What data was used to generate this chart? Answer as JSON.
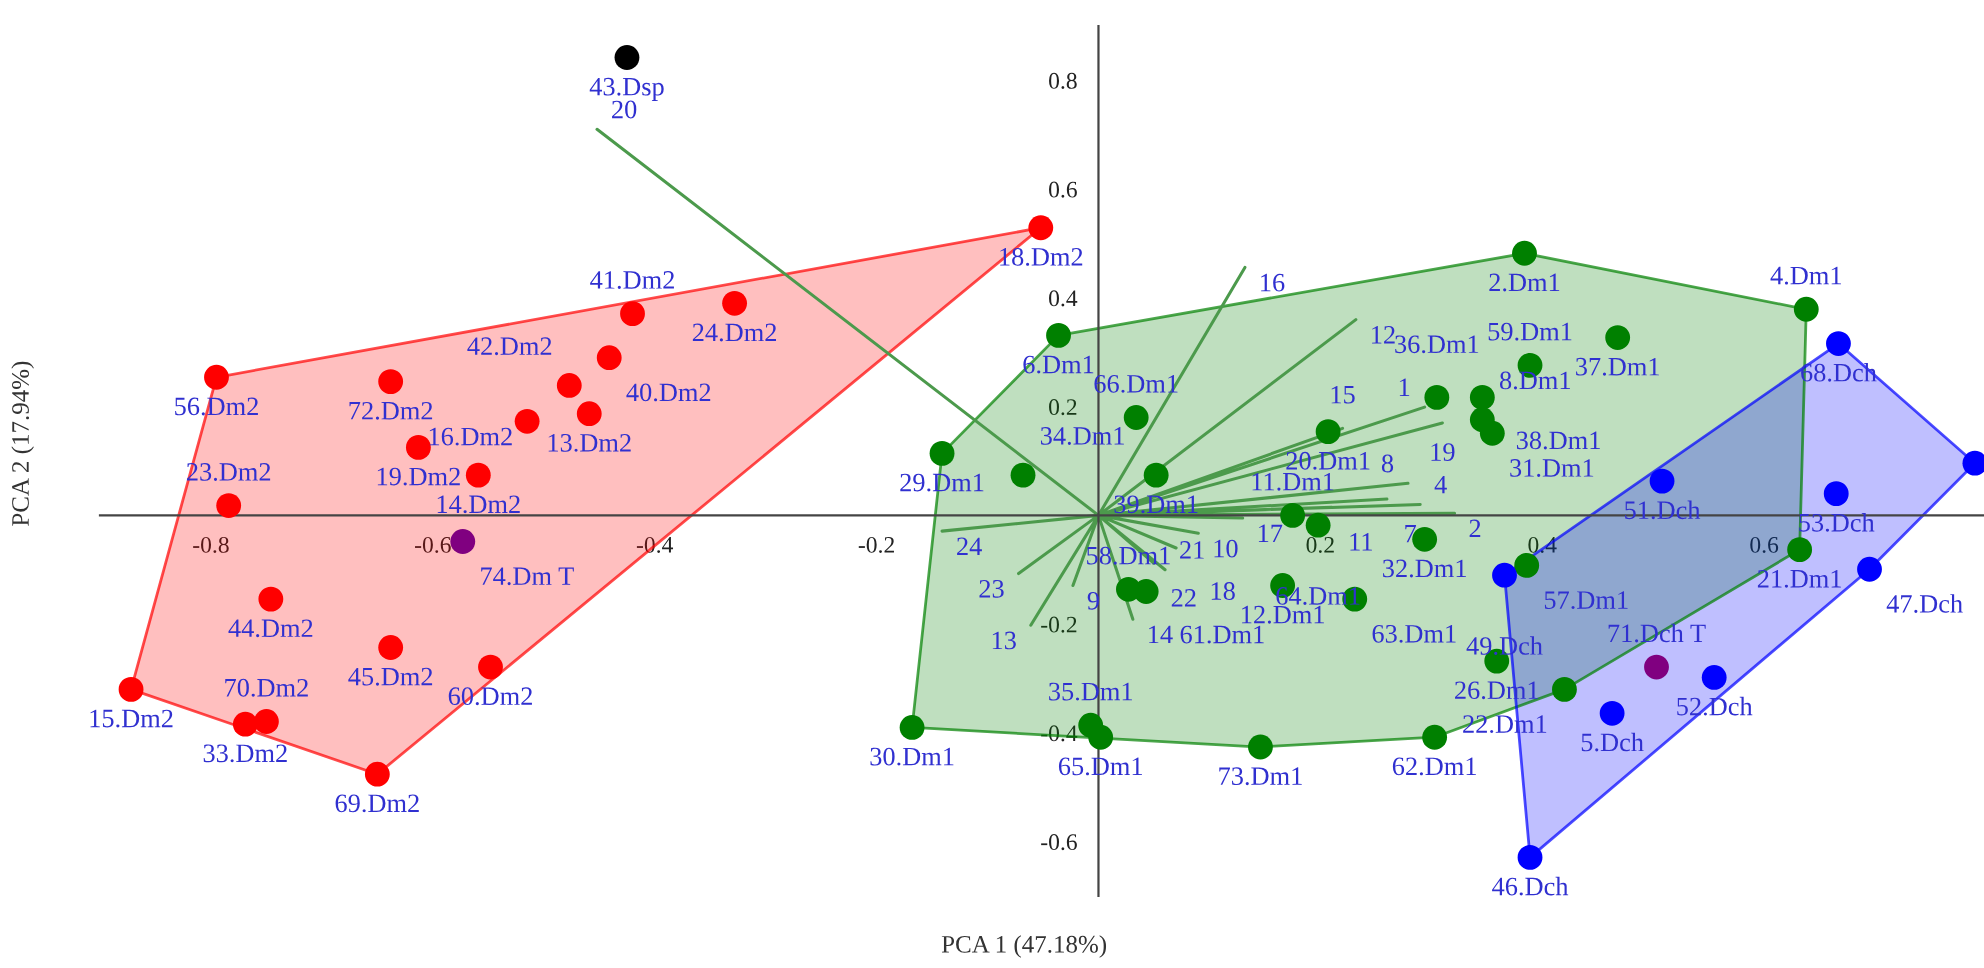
{
  "chart_data": {
    "type": "scatter",
    "xlabel": "PCA 1 (47.18%)",
    "ylabel": "PCA 2 (17.94%)",
    "xlim": [
      -0.9,
      0.8
    ],
    "ylim": [
      -0.7,
      0.9
    ],
    "xticks": [
      -0.8,
      -0.6,
      -0.4,
      -0.2,
      0.2,
      0.4,
      0.6
    ],
    "yticks": [
      -0.6,
      -0.4,
      -0.2,
      0.2,
      0.4,
      0.6,
      0.8
    ],
    "grid": false,
    "legend": false,
    "series": [
      {
        "type": "line",
        "color": "#4c9a4c",
        "x": [
          0,
          -0.452,
          null,
          0,
          0.132,
          null,
          0,
          0.232,
          null,
          0,
          0.294,
          null,
          0,
          0.22,
          null,
          0,
          0.31,
          null,
          0,
          0.279,
          null,
          0,
          0.26,
          null,
          0,
          0.29,
          null,
          0,
          0.321,
          null,
          0,
          0.21,
          null,
          0,
          0.13,
          null,
          0,
          0.09,
          null,
          0,
          0.05,
          null,
          0,
          0.07,
          null,
          0,
          0.06,
          null,
          0,
          0.031,
          null,
          0,
          -0.023,
          null,
          0,
          -0.072,
          null,
          0,
          -0.061,
          null,
          0,
          -0.141
        ],
        "values": [
          0,
          0.71,
          null,
          0,
          0.456,
          null,
          0,
          0.36,
          null,
          0,
          0.199,
          null,
          0,
          0.16,
          null,
          0,
          0.17,
          null,
          0,
          0.059,
          null,
          0,
          0.03,
          null,
          0,
          0.02,
          null,
          0,
          0.004,
          null,
          0,
          0.015,
          null,
          0,
          -0.005,
          null,
          0,
          -0.033,
          null,
          0,
          -0.088,
          null,
          0,
          -0.06,
          null,
          0,
          -0.1,
          null,
          0,
          -0.191,
          null,
          0,
          -0.129,
          null,
          0,
          -0.107,
          null,
          0,
          -0.202,
          null,
          0,
          -0.029
        ]
      },
      {
        "type": "scatter",
        "marker": "circle",
        "color": "#ff0000",
        "x": [
          -0.795,
          -0.638,
          -0.42,
          -0.328,
          -0.441,
          -0.477,
          -0.459,
          -0.515,
          -0.613,
          -0.559,
          -0.052,
          -0.784,
          -0.746,
          -0.638,
          -0.548,
          -0.872,
          -0.769,
          -0.75,
          -0.65
        ],
        "values": [
          0.254,
          0.246,
          0.371,
          0.39,
          0.29,
          0.239,
          0.187,
          0.173,
          0.125,
          0.074,
          0.529,
          0.018,
          -0.154,
          -0.243,
          -0.279,
          -0.32,
          -0.384,
          -0.379,
          -0.476
        ]
      },
      {
        "type": "scatter",
        "marker": "circle",
        "color": "#008000",
        "x": [
          -0.036,
          -0.141,
          -0.068,
          0.034,
          0.052,
          0.207,
          0.305,
          0.175,
          0.198,
          0.294,
          0.166,
          0.231,
          0.027,
          0.043,
          -0.007,
          0.002,
          -0.168,
          0.146,
          0.303,
          0.384,
          0.638,
          0.468,
          0.389,
          0.346,
          0.346,
          0.355,
          0.632,
          0.386,
          0.359,
          0.42
        ],
        "values": [
          0.331,
          0.114,
          0.074,
          0.18,
          0.074,
          0.154,
          0.217,
          0.0,
          -0.018,
          -0.044,
          -0.129,
          -0.154,
          -0.136,
          -0.14,
          -0.386,
          -0.408,
          -0.39,
          -0.426,
          -0.408,
          0.482,
          0.379,
          0.327,
          0.276,
          0.217,
          0.176,
          0.151,
          -0.063,
          -0.092,
          -0.268,
          -0.32
        ]
      },
      {
        "type": "scatter",
        "marker": "circle",
        "color": "#0000ff",
        "x": [
          0.667,
          0.508,
          0.665,
          0.695,
          0.366,
          0.79,
          0.555,
          0.463,
          0.389
        ],
        "values": [
          0.316,
          0.063,
          0.04,
          -0.099,
          -0.11,
          0.096,
          -0.298,
          -0.364,
          -0.629
        ]
      },
      {
        "type": "scatter",
        "marker": "circle",
        "color": "#800080",
        "x": [
          -0.573,
          0.503
        ],
        "values": [
          -0.048,
          -0.279
        ]
      },
      {
        "type": "scatter",
        "marker": "circle",
        "color": "#000000",
        "x": [
          -0.425
        ],
        "values": [
          0.842
        ]
      }
    ],
    "annotations": [
      {
        "text": "20",
        "x": -0.452,
        "y": 0.71
      },
      {
        "text": "16",
        "x": 0.132,
        "y": 0.456
      },
      {
        "text": "12",
        "x": 0.232,
        "y": 0.36
      },
      {
        "text": "1",
        "x": 0.294,
        "y": 0.199
      },
      {
        "text": "15",
        "x": 0.22,
        "y": 0.16
      },
      {
        "text": "19",
        "x": 0.31,
        "y": 0.17
      },
      {
        "text": "8",
        "x": 0.279,
        "y": 0.059
      },
      {
        "text": "7",
        "x": 0.26,
        "y": 0.03
      },
      {
        "text": "4",
        "x": 0.29,
        "y": 0.02
      },
      {
        "text": "2",
        "x": 0.321,
        "y": 0.004
      },
      {
        "text": "11",
        "x": 0.21,
        "y": 0.015
      },
      {
        "text": "17",
        "x": 0.13,
        "y": -0.005
      },
      {
        "text": "10",
        "x": 0.09,
        "y": -0.033
      },
      {
        "text": "22",
        "x": 0.05,
        "y": -0.088
      },
      {
        "text": "18",
        "x": 0.07,
        "y": -0.06
      },
      {
        "text": "21",
        "x": 0.06,
        "y": -0.1
      },
      {
        "text": "14",
        "x": 0.031,
        "y": -0.191
      },
      {
        "text": "9",
        "x": -0.023,
        "y": -0.129
      },
      {
        "text": "23",
        "x": -0.072,
        "y": -0.107
      },
      {
        "text": "13",
        "x": -0.061,
        "y": -0.202
      },
      {
        "text": "24",
        "x": -0.141,
        "y": -0.029
      },
      {
        "text": "56.Dm2",
        "x": -0.795,
        "y": 0.254
      },
      {
        "text": "72.Dm2",
        "x": -0.638,
        "y": 0.246
      },
      {
        "text": "41.Dm2",
        "x": -0.42,
        "y": 0.371
      },
      {
        "text": "24.Dm2",
        "x": -0.328,
        "y": 0.39
      },
      {
        "text": "40.Dm2",
        "x": -0.441,
        "y": 0.29
      },
      {
        "text": "42.Dm2",
        "x": -0.477,
        "y": 0.239
      },
      {
        "text": "13.Dm2",
        "x": -0.459,
        "y": 0.187
      },
      {
        "text": "16.Dm2",
        "x": -0.515,
        "y": 0.173
      },
      {
        "text": "19.Dm2",
        "x": -0.613,
        "y": 0.125
      },
      {
        "text": "14.Dm2",
        "x": -0.559,
        "y": 0.074
      },
      {
        "text": "18.Dm2",
        "x": -0.052,
        "y": 0.529
      },
      {
        "text": "23.Dm2",
        "x": -0.784,
        "y": 0.018
      },
      {
        "text": "44.Dm2",
        "x": -0.746,
        "y": -0.154
      },
      {
        "text": "45.Dm2",
        "x": -0.638,
        "y": -0.243
      },
      {
        "text": "60.Dm2",
        "x": -0.548,
        "y": -0.279
      },
      {
        "text": "15.Dm2",
        "x": -0.872,
        "y": -0.32
      },
      {
        "text": "33.Dm2",
        "x": -0.769,
        "y": -0.384
      },
      {
        "text": "70.Dm2",
        "x": -0.75,
        "y": -0.379
      },
      {
        "text": "69.Dm2",
        "x": -0.65,
        "y": -0.476
      },
      {
        "text": "6.Dm1",
        "x": -0.036,
        "y": 0.331
      },
      {
        "text": "29.Dm1",
        "x": -0.141,
        "y": 0.114
      },
      {
        "text": "34.Dm1",
        "x": -0.068,
        "y": 0.074
      },
      {
        "text": "66.Dm1",
        "x": 0.034,
        "y": 0.18
      },
      {
        "text": "39.Dm1",
        "x": 0.052,
        "y": 0.074
      },
      {
        "text": "20.Dm1",
        "x": 0.207,
        "y": 0.154
      },
      {
        "text": "36.Dm1",
        "x": 0.305,
        "y": 0.217
      },
      {
        "text": "11.Dm1",
        "x": 0.175,
        "y": 0.0
      },
      {
        "text": "64.Dm1",
        "x": 0.198,
        "y": -0.018
      },
      {
        "text": "32.Dm1",
        "x": 0.294,
        "y": -0.044
      },
      {
        "text": "12.Dm1",
        "x": 0.166,
        "y": -0.129
      },
      {
        "text": "63.Dm1",
        "x": 0.231,
        "y": -0.154
      },
      {
        "text": "58.Dm1",
        "x": 0.027,
        "y": -0.136
      },
      {
        "text": "61.Dm1",
        "x": 0.043,
        "y": -0.14
      },
      {
        "text": "35.Dm1",
        "x": -0.007,
        "y": -0.386
      },
      {
        "text": "65.Dm1",
        "x": 0.002,
        "y": -0.408
      },
      {
        "text": "30.Dm1",
        "x": -0.168,
        "y": -0.39
      },
      {
        "text": "73.Dm1",
        "x": 0.146,
        "y": -0.426
      },
      {
        "text": "62.Dm1",
        "x": 0.303,
        "y": -0.408
      },
      {
        "text": "2.Dm1",
        "x": 0.384,
        "y": 0.482
      },
      {
        "text": "4.Dm1",
        "x": 0.638,
        "y": 0.379
      },
      {
        "text": "37.Dm1",
        "x": 0.468,
        "y": 0.327
      },
      {
        "text": "59.Dm1",
        "x": 0.389,
        "y": 0.276
      },
      {
        "text": "38.Dm1",
        "x": 0.346,
        "y": 0.217
      },
      {
        "text": "8.Dm1",
        "x": 0.346,
        "y": 0.176
      },
      {
        "text": "31.Dm1",
        "x": 0.355,
        "y": 0.151
      },
      {
        "text": "21.Dm1",
        "x": 0.632,
        "y": -0.063
      },
      {
        "text": "57.Dm1",
        "x": 0.386,
        "y": -0.092
      },
      {
        "text": "26.Dm1",
        "x": 0.359,
        "y": -0.268
      },
      {
        "text": "22.Dm1",
        "x": 0.42,
        "y": -0.32
      },
      {
        "text": "68.Dch",
        "x": 0.667,
        "y": 0.316
      },
      {
        "text": "51.Dch",
        "x": 0.508,
        "y": 0.063
      },
      {
        "text": "53.Dch",
        "x": 0.665,
        "y": 0.04
      },
      {
        "text": "47.Dch",
        "x": 0.695,
        "y": -0.099
      },
      {
        "text": "49.Dch",
        "x": 0.366,
        "y": -0.11
      },
      {
        "text": "52.Dch",
        "x": 0.555,
        "y": -0.298
      },
      {
        "text": "5.Dch",
        "x": 0.463,
        "y": -0.364
      },
      {
        "text": "46.Dch",
        "x": 0.389,
        "y": -0.629
      },
      {
        "text": "74.Dm T",
        "x": -0.573,
        "y": -0.048
      },
      {
        "text": "71.Dch T",
        "x": 0.503,
        "y": -0.279
      },
      {
        "text": "43.Dsp",
        "x": -0.425,
        "y": 0.842
      }
    ]
  }
}
